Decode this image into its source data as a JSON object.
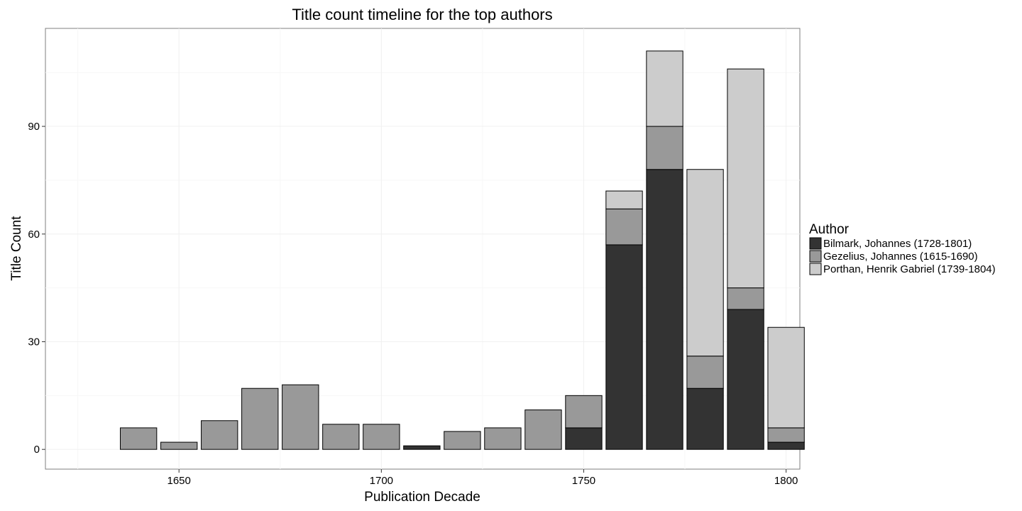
{
  "chart_data": {
    "type": "bar",
    "stacked": true,
    "title": "Title count timeline for the top authors",
    "xlabel": "Publication Decade",
    "ylabel": "Title Count",
    "x": [
      1640,
      1650,
      1660,
      1670,
      1680,
      1690,
      1700,
      1710,
      1720,
      1730,
      1740,
      1750,
      1760,
      1770,
      1780,
      1790,
      1800
    ],
    "series": [
      {
        "name": "Bilmark, Johannes (1728-1801)",
        "color": "#333333",
        "values": [
          0,
          0,
          0,
          0,
          0,
          0,
          0,
          1,
          0,
          0,
          0,
          6,
          57,
          78,
          17,
          39,
          2
        ]
      },
      {
        "name": "Gezelius, Johannes (1615-1690)",
        "color": "#999999",
        "values": [
          6,
          2,
          8,
          17,
          18,
          7,
          7,
          0,
          5,
          6,
          11,
          9,
          10,
          12,
          9,
          6,
          4
        ]
      },
      {
        "name": "Porthan, Henrik Gabriel (1739-1804)",
        "color": "#cccccc",
        "values": [
          0,
          0,
          0,
          0,
          0,
          0,
          0,
          0,
          0,
          0,
          0,
          0,
          5,
          21,
          52,
          61,
          28
        ]
      }
    ],
    "xlim": [
      1617,
      1803.4
    ],
    "ylim": [
      -5.5,
      117.3
    ],
    "x_ticks": [
      "1650",
      "1700",
      "1750",
      "1800"
    ],
    "y_ticks": [
      "0",
      "30",
      "60",
      "90"
    ],
    "bar_width": 9,
    "grid": true,
    "legend": {
      "title": "Author",
      "position": "right"
    }
  }
}
